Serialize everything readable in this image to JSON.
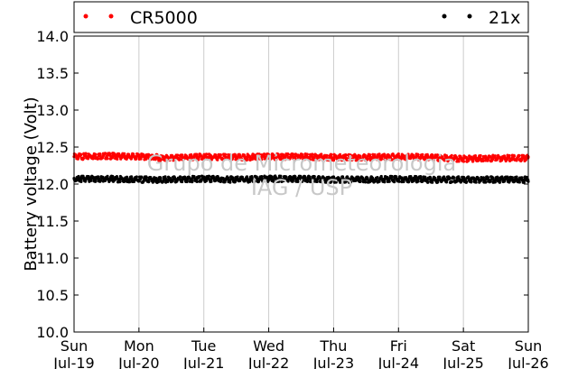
{
  "chart_data": {
    "type": "scatter",
    "ylabel": "Battery voltage (Volt)",
    "ylim": [
      10.0,
      14.0
    ],
    "yticks": [
      "10.0",
      "10.5",
      "11.0",
      "11.5",
      "12.0",
      "12.5",
      "13.0",
      "13.5",
      "14.0"
    ],
    "xlim": [
      "2015-07-19",
      "2015-07-26"
    ],
    "xticks": [
      {
        "day": "Sun",
        "date": "Jul-19"
      },
      {
        "day": "Mon",
        "date": "Jul-20"
      },
      {
        "day": "Tue",
        "date": "Jul-21"
      },
      {
        "day": "Wed",
        "date": "Jul-22"
      },
      {
        "day": "Thu",
        "date": "Jul-23"
      },
      {
        "day": "Fri",
        "date": "Jul-24"
      },
      {
        "day": "Sat",
        "date": "Jul-25"
      },
      {
        "day": "Sun",
        "date": "Jul-26"
      }
    ],
    "grid": "vertical",
    "legend": "top",
    "series": [
      {
        "name": "CR5000",
        "color": "#ff0000",
        "x": [
          "Jul-19",
          "Jul-19 12h",
          "Jul-20",
          "Jul-20 12h",
          "Jul-21",
          "Jul-21 12h",
          "Jul-22",
          "Jul-22 12h",
          "Jul-23",
          "Jul-23 12h",
          "Jul-24",
          "Jul-24 12h",
          "Jul-25",
          "Jul-25 12h",
          "Jul-26"
        ],
        "values": [
          12.37,
          12.38,
          12.37,
          12.35,
          12.37,
          12.36,
          12.37,
          12.37,
          12.36,
          12.36,
          12.37,
          12.36,
          12.34,
          12.35,
          12.35
        ]
      },
      {
        "name": "21x",
        "color": "#000000",
        "x": [
          "Jul-19",
          "Jul-19 12h",
          "Jul-20",
          "Jul-20 12h",
          "Jul-21",
          "Jul-21 12h",
          "Jul-22",
          "Jul-22 12h",
          "Jul-23",
          "Jul-23 12h",
          "Jul-24",
          "Jul-24 12h",
          "Jul-25",
          "Jul-25 12h",
          "Jul-26"
        ],
        "values": [
          12.07,
          12.07,
          12.06,
          12.06,
          12.07,
          12.06,
          12.07,
          12.07,
          12.06,
          12.06,
          12.07,
          12.06,
          12.06,
          12.06,
          12.06
        ]
      }
    ],
    "watermark": [
      "Grupo de Micrometeorologia",
      "IAG / USP"
    ]
  }
}
